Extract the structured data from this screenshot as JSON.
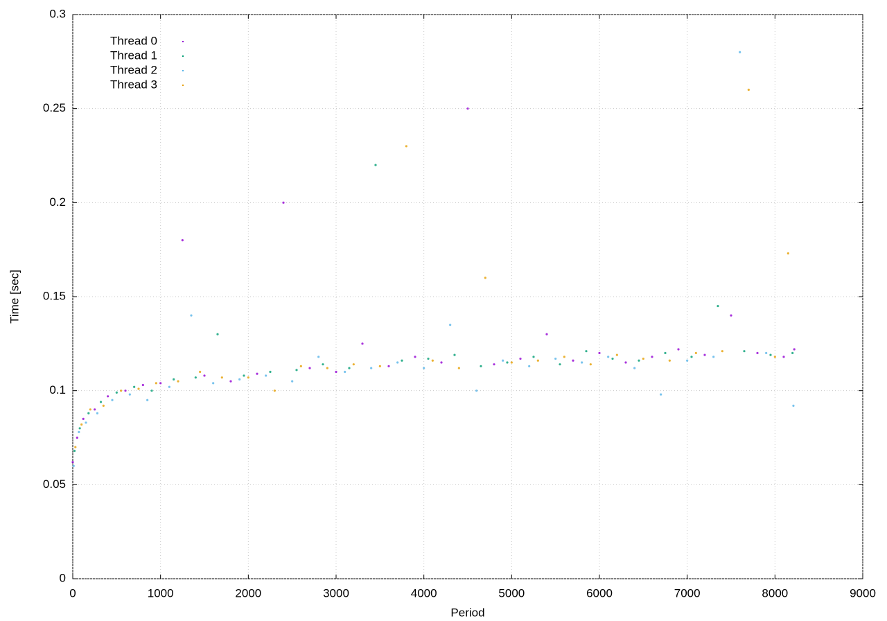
{
  "chart_data": {
    "type": "scatter",
    "xlabel": "Period",
    "ylabel": "Time [sec]",
    "xlim": [
      0,
      9000
    ],
    "xticks": [
      0,
      1000,
      2000,
      3000,
      4000,
      5000,
      6000,
      7000,
      8000,
      9000
    ],
    "ylim": [
      0,
      0.3
    ],
    "yticks": [
      0,
      0.05,
      0.1,
      0.15,
      0.2,
      0.25,
      0.3
    ],
    "grid": true,
    "legend": "top-left",
    "series": [
      {
        "name": "Thread 0",
        "color": "#9400d3",
        "x": [
          0,
          50,
          120,
          250,
          400,
          600,
          800,
          1000,
          1250,
          1500,
          1800,
          2100,
          2400,
          2700,
          3000,
          3300,
          3600,
          3900,
          4200,
          4500,
          4800,
          5100,
          5400,
          5700,
          6000,
          6300,
          6600,
          6900,
          7200,
          7500,
          7800,
          8100,
          8220
        ],
        "values": [
          0.062,
          0.075,
          0.085,
          0.09,
          0.097,
          0.1,
          0.103,
          0.104,
          0.18,
          0.108,
          0.105,
          0.109,
          0.2,
          0.112,
          0.11,
          0.125,
          0.113,
          0.118,
          0.115,
          0.25,
          0.114,
          0.117,
          0.13,
          0.116,
          0.12,
          0.115,
          0.118,
          0.122,
          0.119,
          0.14,
          0.12,
          0.118,
          0.122
        ]
      },
      {
        "name": "Thread 1",
        "color": "#009e73",
        "x": [
          20,
          80,
          180,
          320,
          500,
          700,
          900,
          1150,
          1400,
          1650,
          1950,
          2250,
          2550,
          2850,
          3150,
          3450,
          3750,
          4050,
          4350,
          4650,
          4950,
          5250,
          5550,
          5850,
          6150,
          6450,
          6750,
          7050,
          7350,
          7650,
          7950,
          8200
        ],
        "values": [
          0.068,
          0.08,
          0.088,
          0.094,
          0.099,
          0.102,
          0.1,
          0.106,
          0.107,
          0.13,
          0.108,
          0.11,
          0.111,
          0.114,
          0.112,
          0.22,
          0.116,
          0.117,
          0.119,
          0.113,
          0.115,
          0.118,
          0.114,
          0.121,
          0.117,
          0.116,
          0.12,
          0.118,
          0.145,
          0.121,
          0.119,
          0.12
        ]
      },
      {
        "name": "Thread 2",
        "color": "#56b4e9",
        "x": [
          10,
          70,
          150,
          280,
          450,
          650,
          850,
          1100,
          1350,
          1600,
          1900,
          2200,
          2500,
          2800,
          3100,
          3400,
          3700,
          4000,
          4300,
          4600,
          4900,
          5200,
          5500,
          5800,
          6100,
          6400,
          6700,
          7000,
          7300,
          7600,
          7900,
          8210
        ],
        "values": [
          0.06,
          0.078,
          0.083,
          0.088,
          0.095,
          0.098,
          0.095,
          0.102,
          0.14,
          0.104,
          0.106,
          0.108,
          0.105,
          0.118,
          0.11,
          0.112,
          0.115,
          0.112,
          0.135,
          0.1,
          0.116,
          0.113,
          0.117,
          0.115,
          0.118,
          0.112,
          0.098,
          0.116,
          0.118,
          0.28,
          0.12,
          0.092
        ]
      },
      {
        "name": "Thread 3",
        "color": "#e69f00",
        "x": [
          30,
          100,
          200,
          350,
          550,
          750,
          950,
          1200,
          1450,
          1700,
          2000,
          2300,
          2600,
          2900,
          3200,
          3500,
          3800,
          4100,
          4400,
          4700,
          5000,
          5300,
          5600,
          5900,
          6200,
          6500,
          6800,
          7100,
          7400,
          7700,
          8000,
          8150
        ],
        "values": [
          0.07,
          0.082,
          0.09,
          0.092,
          0.1,
          0.101,
          0.104,
          0.105,
          0.11,
          0.107,
          0.107,
          0.1,
          0.113,
          0.112,
          0.114,
          0.113,
          0.23,
          0.116,
          0.112,
          0.16,
          0.115,
          0.116,
          0.118,
          0.114,
          0.119,
          0.117,
          0.116,
          0.12,
          0.121,
          0.26,
          0.118,
          0.173
        ]
      }
    ]
  }
}
